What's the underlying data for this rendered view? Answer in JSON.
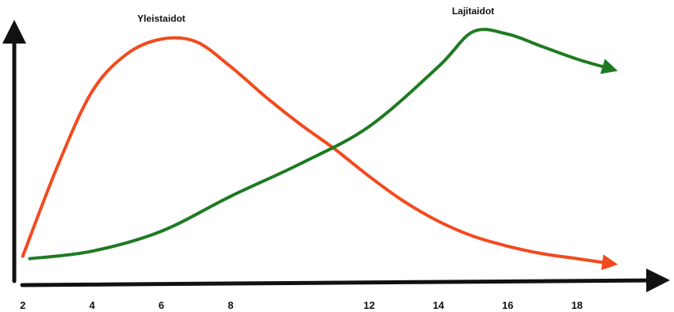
{
  "chart_data": {
    "type": "line",
    "title": "",
    "xlabel": "",
    "ylabel": "",
    "xlim": [
      1.8,
      20.8
    ],
    "ylim": [
      0,
      1
    ],
    "grid": false,
    "x_ticks": [
      "2",
      "4",
      "6",
      "8",
      "12",
      "14",
      "16",
      "18"
    ],
    "series": [
      {
        "name": "Yleistaidot",
        "color": "#f24a1e",
        "points": [
          [
            2.0,
            0.1
          ],
          [
            3.0,
            0.46
          ],
          [
            4.0,
            0.76
          ],
          [
            5.0,
            0.91
          ],
          [
            6.0,
            0.97
          ],
          [
            7.0,
            0.96
          ],
          [
            8.0,
            0.86
          ],
          [
            9.0,
            0.74
          ],
          [
            10.0,
            0.63
          ],
          [
            11.0,
            0.53
          ],
          [
            12.0,
            0.42
          ],
          [
            13.0,
            0.32
          ],
          [
            14.0,
            0.24
          ],
          [
            15.0,
            0.18
          ],
          [
            16.0,
            0.14
          ],
          [
            17.0,
            0.11
          ],
          [
            18.0,
            0.09
          ],
          [
            19.0,
            0.07
          ]
        ]
      },
      {
        "name": "Lajitaidot",
        "color": "#1e7a22",
        "points": [
          [
            2.2,
            0.09
          ],
          [
            4.0,
            0.12
          ],
          [
            6.0,
            0.2
          ],
          [
            8.0,
            0.34
          ],
          [
            10.0,
            0.47
          ],
          [
            12.0,
            0.62
          ],
          [
            14.0,
            0.86
          ],
          [
            15.0,
            1.0
          ],
          [
            16.0,
            0.99
          ],
          [
            17.0,
            0.94
          ],
          [
            18.0,
            0.89
          ],
          [
            19.0,
            0.85
          ]
        ]
      }
    ]
  }
}
